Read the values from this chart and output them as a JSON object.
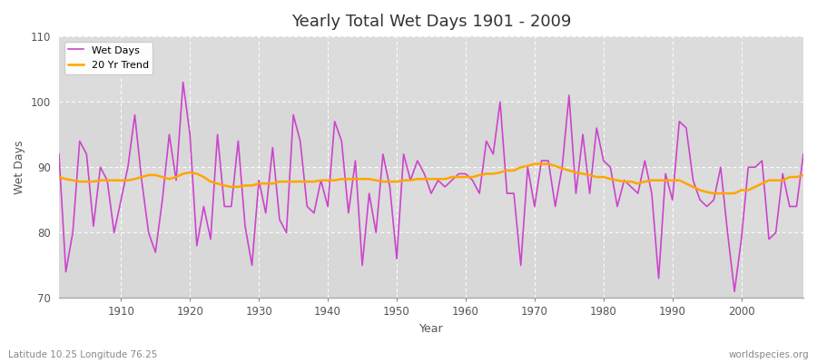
{
  "title": "Yearly Total Wet Days 1901 - 2009",
  "xlabel": "Year",
  "ylabel": "Wet Days",
  "subtitle_left": "Latitude 10.25 Longitude 76.25",
  "subtitle_right": "worldspecies.org",
  "ylim": [
    70,
    110
  ],
  "yticks": [
    70,
    80,
    90,
    100,
    110
  ],
  "wet_days_color": "#CC44CC",
  "trend_color": "#FFA500",
  "bg_color": "#DCDCDC",
  "band_color": "#CACACA",
  "legend_wet": "Wet Days",
  "legend_trend": "20 Yr Trend",
  "years": [
    1901,
    1902,
    1903,
    1904,
    1905,
    1906,
    1907,
    1908,
    1909,
    1910,
    1911,
    1912,
    1913,
    1914,
    1915,
    1916,
    1917,
    1918,
    1919,
    1920,
    1921,
    1922,
    1923,
    1924,
    1925,
    1926,
    1927,
    1928,
    1929,
    1930,
    1931,
    1932,
    1933,
    1934,
    1935,
    1936,
    1937,
    1938,
    1939,
    1940,
    1941,
    1942,
    1943,
    1944,
    1945,
    1946,
    1947,
    1948,
    1949,
    1950,
    1951,
    1952,
    1953,
    1954,
    1955,
    1956,
    1957,
    1958,
    1959,
    1960,
    1961,
    1962,
    1963,
    1964,
    1965,
    1966,
    1967,
    1968,
    1969,
    1970,
    1971,
    1972,
    1973,
    1974,
    1975,
    1976,
    1977,
    1978,
    1979,
    1980,
    1981,
    1982,
    1983,
    1984,
    1985,
    1986,
    1987,
    1988,
    1989,
    1990,
    1991,
    1992,
    1993,
    1994,
    1995,
    1996,
    1997,
    1998,
    1999,
    2000,
    2001,
    2002,
    2003,
    2004,
    2005,
    2006,
    2007,
    2008,
    2009
  ],
  "wet_days": [
    92,
    74,
    80,
    94,
    92,
    81,
    90,
    88,
    80,
    85,
    90,
    98,
    88,
    80,
    77,
    85,
    95,
    88,
    103,
    95,
    78,
    84,
    79,
    95,
    84,
    84,
    94,
    81,
    75,
    88,
    83,
    93,
    82,
    80,
    98,
    94,
    84,
    83,
    88,
    84,
    97,
    94,
    83,
    91,
    75,
    86,
    80,
    92,
    87,
    76,
    92,
    88,
    91,
    89,
    86,
    88,
    87,
    88,
    89,
    89,
    88,
    86,
    94,
    92,
    100,
    86,
    86,
    75,
    90,
    84,
    91,
    91,
    84,
    90,
    101,
    86,
    95,
    86,
    96,
    91,
    90,
    84,
    88,
    87,
    86,
    91,
    86,
    73,
    89,
    85,
    97,
    96,
    88,
    85,
    84,
    85,
    90,
    80,
    71,
    79,
    90,
    90,
    91,
    79,
    80,
    89,
    84,
    84,
    92
  ],
  "trend": [
    88.5,
    88.2,
    88.0,
    87.8,
    87.8,
    87.8,
    88.0,
    88.0,
    88.0,
    88.0,
    88.0,
    88.2,
    88.5,
    88.8,
    88.8,
    88.5,
    88.2,
    88.5,
    89.0,
    89.2,
    89.0,
    88.5,
    87.8,
    87.5,
    87.2,
    87.0,
    87.0,
    87.2,
    87.2,
    87.5,
    87.5,
    87.5,
    87.8,
    87.8,
    87.8,
    87.8,
    87.8,
    87.8,
    88.0,
    88.0,
    88.0,
    88.2,
    88.2,
    88.2,
    88.2,
    88.2,
    88.0,
    87.8,
    87.8,
    87.8,
    88.0,
    88.0,
    88.2,
    88.2,
    88.2,
    88.2,
    88.2,
    88.5,
    88.5,
    88.5,
    88.5,
    88.8,
    89.0,
    89.0,
    89.2,
    89.5,
    89.5,
    90.0,
    90.2,
    90.5,
    90.5,
    90.5,
    90.2,
    89.8,
    89.5,
    89.2,
    89.0,
    88.8,
    88.5,
    88.5,
    88.2,
    88.0,
    87.8,
    87.8,
    87.5,
    87.8,
    88.0,
    88.0,
    88.0,
    88.0,
    88.0,
    87.5,
    87.0,
    86.5,
    86.2,
    86.0,
    86.0,
    86.0,
    86.0,
    86.5,
    86.5,
    87.0,
    87.5,
    88.0,
    88.0,
    88.0,
    88.5,
    88.5,
    88.8
  ]
}
